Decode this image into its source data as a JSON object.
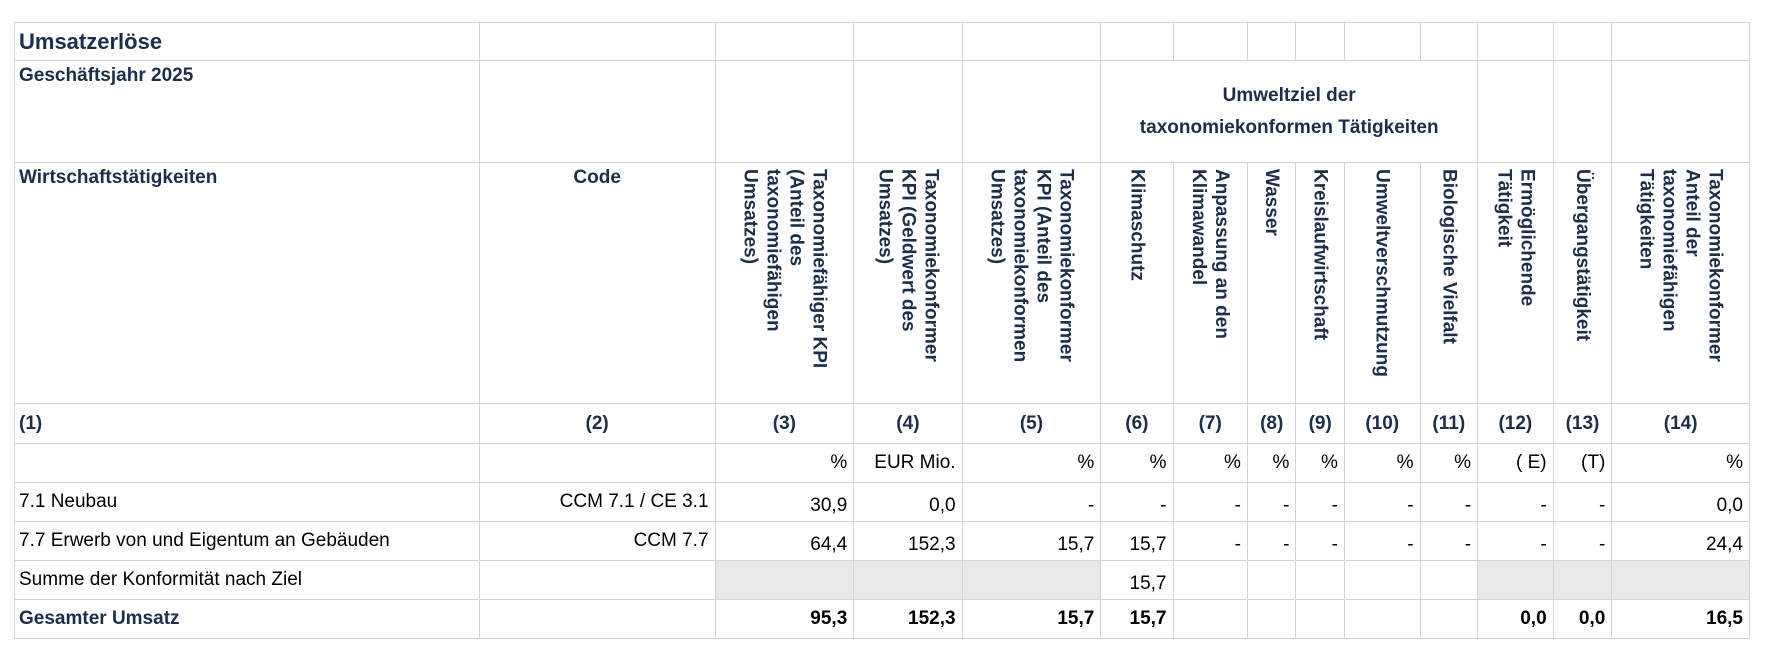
{
  "table": {
    "title": "Umsatzerlöse",
    "fiscal_year": "Geschäftsjahr 2025",
    "env_goal_line1": "Umweltziel der",
    "env_goal_line2": "taxonomiekonformen Tätigkeiten",
    "col_header_activities": "Wirtschaftstätigkeiten",
    "col_header_code": "Code",
    "vertical_headers": [
      "Taxonomiefähiger KPI\n(Anteil des\ntaxonomiefähigen\nUmsatzes)",
      "Taxonomiekonformer\nKPI (Geldwert des\nUmsatzes)",
      "Taxonomiekonformer\nKPI (Anteil des\ntaxonomiekonformen\nUmsatzes)",
      "Klimaschutz",
      "Anpassung an den\nKlimawandel",
      "Wasser",
      "Kreislaufwirtschaft",
      "Umweltverschmutzung",
      "Biologische Vielfalt",
      "Ermöglichende\nTätigkeit",
      "Übergangstätigkeit",
      "Taxonomiekonformer\nAnteil der\ntaxonomiefähigen\nTätigkeiten"
    ],
    "column_numbers": [
      "(1)",
      "(2)",
      "(3)",
      "(4)",
      "(5)",
      "(6)",
      "(7)",
      "(8)",
      "(9)",
      "(10)",
      "(11)",
      "(12)",
      "(13)",
      "(14)"
    ],
    "units": [
      "",
      "",
      "%",
      "EUR Mio.",
      "%",
      "%",
      "%",
      "%",
      "%",
      "%",
      "%",
      "( E)",
      "(T)",
      "%"
    ],
    "rows": [
      {
        "cells": [
          "7.1 Neubau",
          "CCM 7.1 / CE 3.1",
          "30,9",
          "0,0",
          "-",
          "-",
          "-",
          "-",
          "-",
          "-",
          "-",
          "-",
          "-",
          "0,0"
        ]
      },
      {
        "cells": [
          "7.7 Erwerb von und Eigentum an Gebäuden",
          "CCM 7.7",
          "64,4",
          "152,3",
          "15,7",
          "15,7",
          "-",
          "-",
          "-",
          "-",
          "-",
          "-",
          "-",
          "24,4"
        ]
      },
      {
        "cells": [
          "Summe der Konformität nach Ziel",
          "",
          "",
          "",
          "",
          "15,7",
          "",
          "",
          "",
          "",
          "",
          "",
          "",
          ""
        ]
      },
      {
        "cells": [
          "Gesamter Umsatz",
          "",
          "95,3",
          "152,3",
          "15,7",
          "15,7",
          "",
          "",
          "",
          "",
          "",
          "0,0",
          "0,0",
          "16,5"
        ]
      }
    ]
  }
}
